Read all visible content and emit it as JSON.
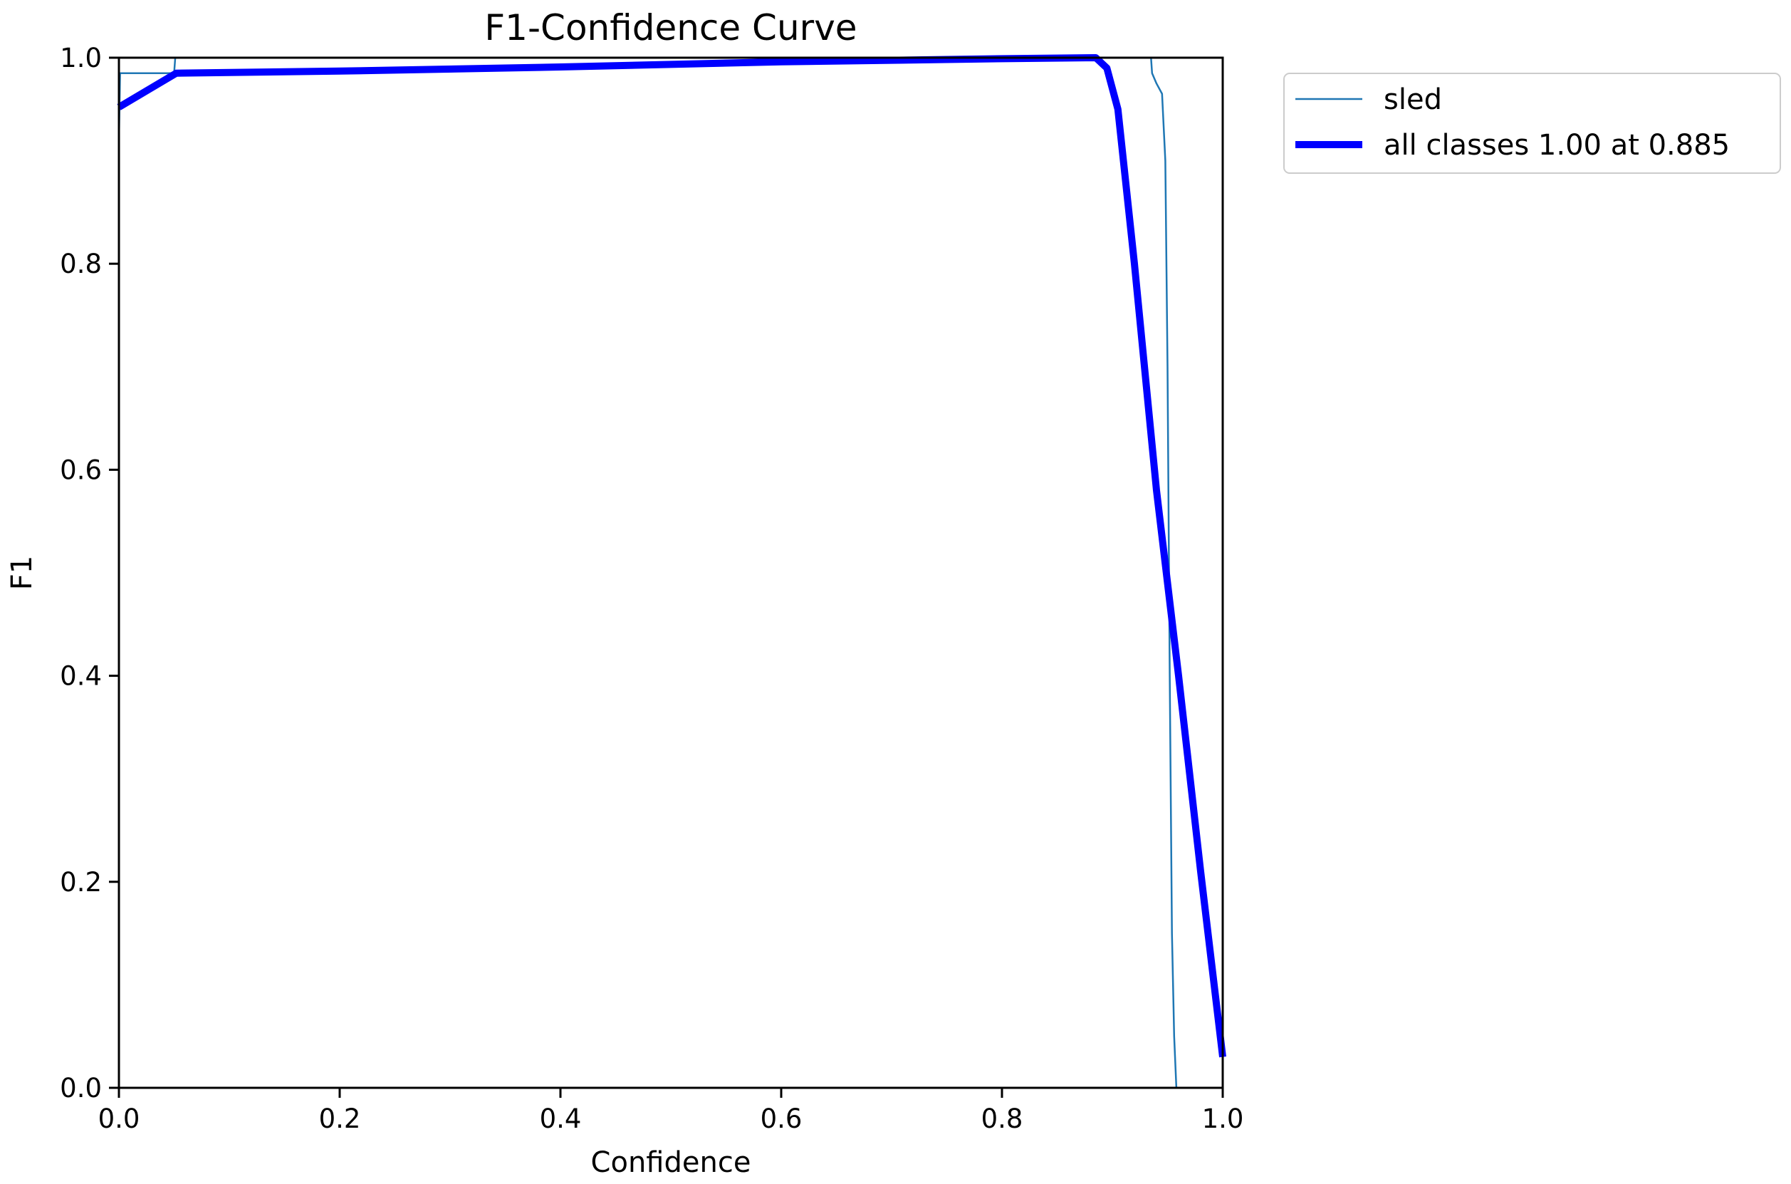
{
  "chart_data": {
    "type": "line",
    "title": "F1-Confidence Curve",
    "xlabel": "Confidence",
    "ylabel": "F1",
    "xlim": [
      0,
      1
    ],
    "ylim": [
      0,
      1
    ],
    "x_ticks": [
      "0.0",
      "0.2",
      "0.4",
      "0.6",
      "0.8",
      "1.0"
    ],
    "y_ticks": [
      "0.0",
      "0.2",
      "0.4",
      "0.6",
      "0.8",
      "1.0"
    ],
    "grid": false,
    "legend_position": "outside-top-right",
    "series": [
      {
        "name": "sled",
        "color": "#1f77b4",
        "line_style": "thin",
        "x": [
          0.0,
          0.001,
          0.002,
          0.05,
          0.051,
          0.4,
          0.8,
          0.935,
          0.936,
          0.94,
          0.945,
          0.948,
          0.95,
          0.952,
          0.954,
          0.956,
          0.958
        ],
        "y": [
          0.92,
          0.985,
          0.985,
          0.985,
          1.0,
          1.0,
          1.0,
          1.0,
          0.985,
          0.975,
          0.965,
          0.9,
          0.7,
          0.4,
          0.15,
          0.05,
          0.0
        ]
      },
      {
        "name": "all classes 1.00 at 0.885",
        "color": "#0000ff",
        "line_style": "thick",
        "x": [
          0.0,
          0.052,
          0.2,
          0.4,
          0.6,
          0.8,
          0.885,
          0.895,
          0.905,
          0.92,
          0.94,
          0.96,
          0.98,
          1.0
        ],
        "y": [
          0.952,
          0.985,
          0.987,
          0.991,
          0.996,
          0.999,
          1.0,
          0.99,
          0.95,
          0.8,
          0.58,
          0.4,
          0.21,
          0.03
        ]
      }
    ]
  }
}
